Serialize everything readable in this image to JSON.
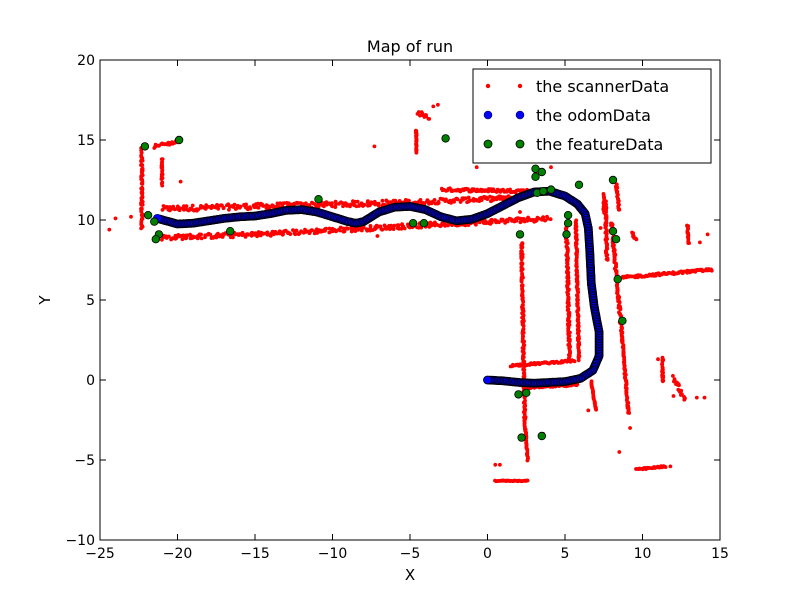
{
  "chart_data": {
    "type": "scatter",
    "title": "Map of run",
    "xlabel": "X",
    "ylabel": "Y",
    "xlim": [
      -25,
      15
    ],
    "ylim": [
      -10,
      20
    ],
    "xticks": [
      -25,
      -20,
      -15,
      -10,
      -5,
      0,
      5,
      10,
      15
    ],
    "yticks": [
      -10,
      -5,
      0,
      5,
      10,
      15,
      20
    ],
    "xtick_labels": [
      "−25",
      "−20",
      "−15",
      "−10",
      "−5",
      "0",
      "5",
      "10",
      "15"
    ],
    "ytick_labels": [
      "−10",
      "−5",
      "0",
      "5",
      "10",
      "15",
      "20"
    ],
    "grid": false,
    "legend_position": "top-right",
    "series": [
      {
        "name": "the scannerData",
        "color": "#ff0000",
        "marker": "small-dot",
        "segments": [
          {
            "from": [
              -21,
              10.7
            ],
            "to": [
              -5,
              11.1
            ],
            "spread": 0.35
          },
          {
            "from": [
              -5,
              11.1
            ],
            "to": [
              2,
              11.4
            ],
            "spread": 0.3
          },
          {
            "from": [
              -3,
              11.9
            ],
            "to": [
              3,
              11.8
            ],
            "spread": 0.2
          },
          {
            "from": [
              -21,
              8.9
            ],
            "to": [
              -15,
              9.1
            ],
            "spread": 0.3
          },
          {
            "from": [
              -15,
              9.1
            ],
            "to": [
              4,
              10.1
            ],
            "spread": 0.3
          },
          {
            "from": [
              -22.3,
              14.6
            ],
            "to": [
              -22.3,
              9.5
            ],
            "spread": 0.2
          },
          {
            "from": [
              -21.5,
              14.6
            ],
            "to": [
              -20,
              14.9
            ],
            "spread": 0.2
          },
          {
            "from": [
              -21,
              13.8
            ],
            "to": [
              -21,
              12.2
            ],
            "spread": 0.15
          },
          {
            "from": [
              5.1,
              9.6
            ],
            "to": [
              5.3,
              1.2
            ],
            "spread": 0.2
          },
          {
            "from": [
              5.7,
              10
            ],
            "to": [
              5.9,
              1.3
            ],
            "spread": 0.15
          },
          {
            "from": [
              1.5,
              0.9
            ],
            "to": [
              5.6,
              1.2
            ],
            "spread": 0.12
          },
          {
            "from": [
              2.5,
              -0.5
            ],
            "to": [
              5.8,
              -0.3
            ],
            "spread": 0.1
          },
          {
            "from": [
              7.6,
              11.2
            ],
            "to": [
              7.7,
              7.5
            ],
            "spread": 0.2
          },
          {
            "from": [
              8.0,
              9.8
            ],
            "to": [
              8.7,
              2.5
            ],
            "spread": 0.2
          },
          {
            "from": [
              8.7,
              2.5
            ],
            "to": [
              9.1,
              -2.1
            ],
            "spread": 0.15
          },
          {
            "from": [
              8.7,
              6.4
            ],
            "to": [
              14.5,
              6.9
            ],
            "spread": 0.15
          },
          {
            "from": [
              8.3,
              12.3
            ],
            "to": [
              8.5,
              10.6
            ],
            "spread": 0.15
          },
          {
            "from": [
              2.2,
              8.6
            ],
            "to": [
              2.4,
              -2.6
            ],
            "spread": 0.2
          },
          {
            "from": [
              2.4,
              -2.6
            ],
            "to": [
              2.6,
              -5.0
            ],
            "spread": 0.1
          },
          {
            "from": [
              0.5,
              -6.3
            ],
            "to": [
              2.6,
              -6.3
            ],
            "spread": 0.05
          },
          {
            "from": [
              -4.5,
              16.7
            ],
            "to": [
              -3.8,
              16.4
            ],
            "spread": 0.25
          },
          {
            "from": [
              -4.6,
              15.6
            ],
            "to": [
              -4.6,
              14.2
            ],
            "spread": 0.1
          },
          {
            "from": [
              9.3,
              9.2
            ],
            "to": [
              9.6,
              8.8
            ],
            "spread": 0.2
          },
          {
            "from": [
              9.6,
              -5.6
            ],
            "to": [
              11.5,
              -5.4
            ],
            "spread": 0.1
          },
          {
            "from": [
              11.3,
              1.4
            ],
            "to": [
              11.3,
              -0.1
            ],
            "spread": 0.15
          },
          {
            "from": [
              12.0,
              0.2
            ],
            "to": [
              12.7,
              -1.2
            ],
            "spread": 0.3
          },
          {
            "from": [
              3.4,
              -3.6
            ],
            "to": [
              3.6,
              -3.4
            ],
            "spread": 0.1
          },
          {
            "from": [
              6.7,
              -0.1
            ],
            "to": [
              7.0,
              -1.9
            ],
            "spread": 0.1
          },
          {
            "from": [
              12.9,
              9.7
            ],
            "to": [
              13.0,
              8.5
            ],
            "spread": 0.15
          },
          {
            "from": [
              7.5,
              11.6
            ],
            "to": [
              7.5,
              10.5
            ],
            "spread": 0.1
          }
        ],
        "points": [
          [
            -24.4,
            9.4
          ],
          [
            -24.0,
            10.1
          ],
          [
            -19.8,
            12.4
          ],
          [
            -7.3,
            14.6
          ],
          [
            -3.5,
            17.1
          ],
          [
            -3.2,
            17.2
          ],
          [
            -0.7,
            13.3
          ],
          [
            0.5,
            -5.3
          ],
          [
            0.8,
            -5.3
          ],
          [
            6.5,
            -1.9
          ],
          [
            8.5,
            -4.5
          ],
          [
            11.0,
            1.3
          ],
          [
            12.0,
            -1.0
          ],
          [
            13.5,
            -1.1
          ],
          [
            14.0,
            -1.1
          ],
          [
            13.7,
            8.6
          ],
          [
            14.2,
            9.1
          ],
          [
            3.0,
            14.4
          ],
          [
            4.1,
            13.3
          ],
          [
            4.0,
            11.7
          ],
          [
            7.3,
            9.5
          ],
          [
            5.0,
            9.1
          ],
          [
            2.1,
            10.5
          ],
          [
            -7.1,
            9.0
          ],
          [
            -23.0,
            10.2
          ],
          [
            9.2,
            -3.0
          ],
          [
            10.8,
            -5.5
          ],
          [
            11.8,
            -5.4
          ],
          [
            3.1,
            13.0
          ],
          [
            -0.6,
            13.9
          ]
        ]
      },
      {
        "name": "the odomData",
        "color": "#0000ff",
        "marker": "circle",
        "path": [
          [
            -21.3,
            10.1
          ],
          [
            -20.0,
            9.75
          ],
          [
            -19.0,
            9.8
          ],
          [
            -18.0,
            9.95
          ],
          [
            -17.0,
            10.1
          ],
          [
            -16.0,
            10.2
          ],
          [
            -15.0,
            10.25
          ],
          [
            -14.0,
            10.4
          ],
          [
            -13.0,
            10.6
          ],
          [
            -12.0,
            10.65
          ],
          [
            -11.0,
            10.5
          ],
          [
            -10.0,
            10.2
          ],
          [
            -9.0,
            9.9
          ],
          [
            -8.5,
            9.8
          ],
          [
            -8.0,
            9.9
          ],
          [
            -7.5,
            10.2
          ],
          [
            -7.0,
            10.5
          ],
          [
            -6.0,
            10.8
          ],
          [
            -5.0,
            10.85
          ],
          [
            -4.0,
            10.65
          ],
          [
            -3.0,
            10.2
          ],
          [
            -2.0,
            9.95
          ],
          [
            -1.0,
            10.05
          ],
          [
            0.0,
            10.4
          ],
          [
            1.0,
            10.9
          ],
          [
            2.0,
            11.4
          ],
          [
            3.0,
            11.75
          ],
          [
            4.0,
            11.8
          ],
          [
            5.0,
            11.5
          ],
          [
            5.8,
            11.0
          ],
          [
            6.3,
            10.4
          ],
          [
            6.5,
            9.5
          ],
          [
            6.6,
            8.0
          ],
          [
            6.7,
            6.0
          ],
          [
            6.9,
            4.5
          ],
          [
            7.2,
            3.0
          ],
          [
            7.2,
            1.5
          ],
          [
            6.8,
            0.6
          ],
          [
            6.0,
            0.1
          ],
          [
            5.0,
            -0.1
          ],
          [
            4.0,
            -0.15
          ],
          [
            3.0,
            -0.2
          ],
          [
            2.0,
            -0.15
          ],
          [
            1.0,
            -0.05
          ],
          [
            0.0,
            0.0
          ]
        ]
      },
      {
        "name": "the featureData",
        "color": "#008000",
        "marker": "circle",
        "points": [
          [
            -22.1,
            14.6
          ],
          [
            -19.9,
            15.0
          ],
          [
            -21.9,
            10.3
          ],
          [
            -21.5,
            9.9
          ],
          [
            -21.2,
            9.1
          ],
          [
            -21.4,
            8.8
          ],
          [
            -16.6,
            9.3
          ],
          [
            -10.9,
            11.3
          ],
          [
            -4.8,
            9.8
          ],
          [
            -4.1,
            9.8
          ],
          [
            -2.7,
            15.1
          ],
          [
            2.1,
            9.1
          ],
          [
            3.1,
            13.2
          ],
          [
            3.5,
            13.0
          ],
          [
            3.1,
            12.7
          ],
          [
            3.2,
            11.7
          ],
          [
            3.6,
            11.8
          ],
          [
            4.1,
            11.9
          ],
          [
            5.9,
            12.2
          ],
          [
            5.2,
            10.3
          ],
          [
            5.2,
            9.8
          ],
          [
            5.1,
            9.1
          ],
          [
            8.1,
            12.5
          ],
          [
            8.1,
            9.3
          ],
          [
            8.3,
            8.8
          ],
          [
            8.4,
            6.3
          ],
          [
            8.7,
            3.7
          ],
          [
            2.0,
            -0.9
          ],
          [
            2.5,
            -0.8
          ],
          [
            2.2,
            -3.6
          ],
          [
            3.5,
            -3.5
          ]
        ]
      }
    ]
  }
}
